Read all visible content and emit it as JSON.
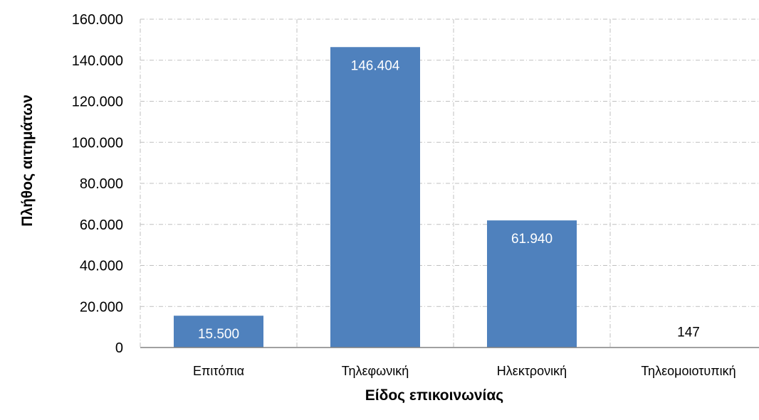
{
  "chart_data": {
    "type": "bar",
    "categories": [
      "Επιτόπια",
      "Τηλεφωνική",
      "Ηλεκτρονική",
      "Τηλεομοιοτυπική"
    ],
    "values": [
      15500,
      146404,
      61940,
      147
    ],
    "data_labels": [
      "15.500",
      "146.404",
      "61.940",
      "147"
    ],
    "xlabel": "Είδος επικοινωνίας",
    "ylabel": "Πλήθος αιτημάτων",
    "ylim": [
      0,
      160000
    ],
    "yticks": [
      0,
      20000,
      40000,
      60000,
      80000,
      100000,
      120000,
      140000,
      160000
    ],
    "ytick_labels": [
      "0",
      "20.000",
      "40.000",
      "60.000",
      "80.000",
      "100.000",
      "120.000",
      "140.000",
      "160.000"
    ],
    "grid": true,
    "legend": "none",
    "colors": {
      "bar": "#4F81BD",
      "grid": "#BFBFBF",
      "axis": "#808080",
      "label_inside": "#FFFFFF",
      "label_outside": "#000000"
    }
  }
}
